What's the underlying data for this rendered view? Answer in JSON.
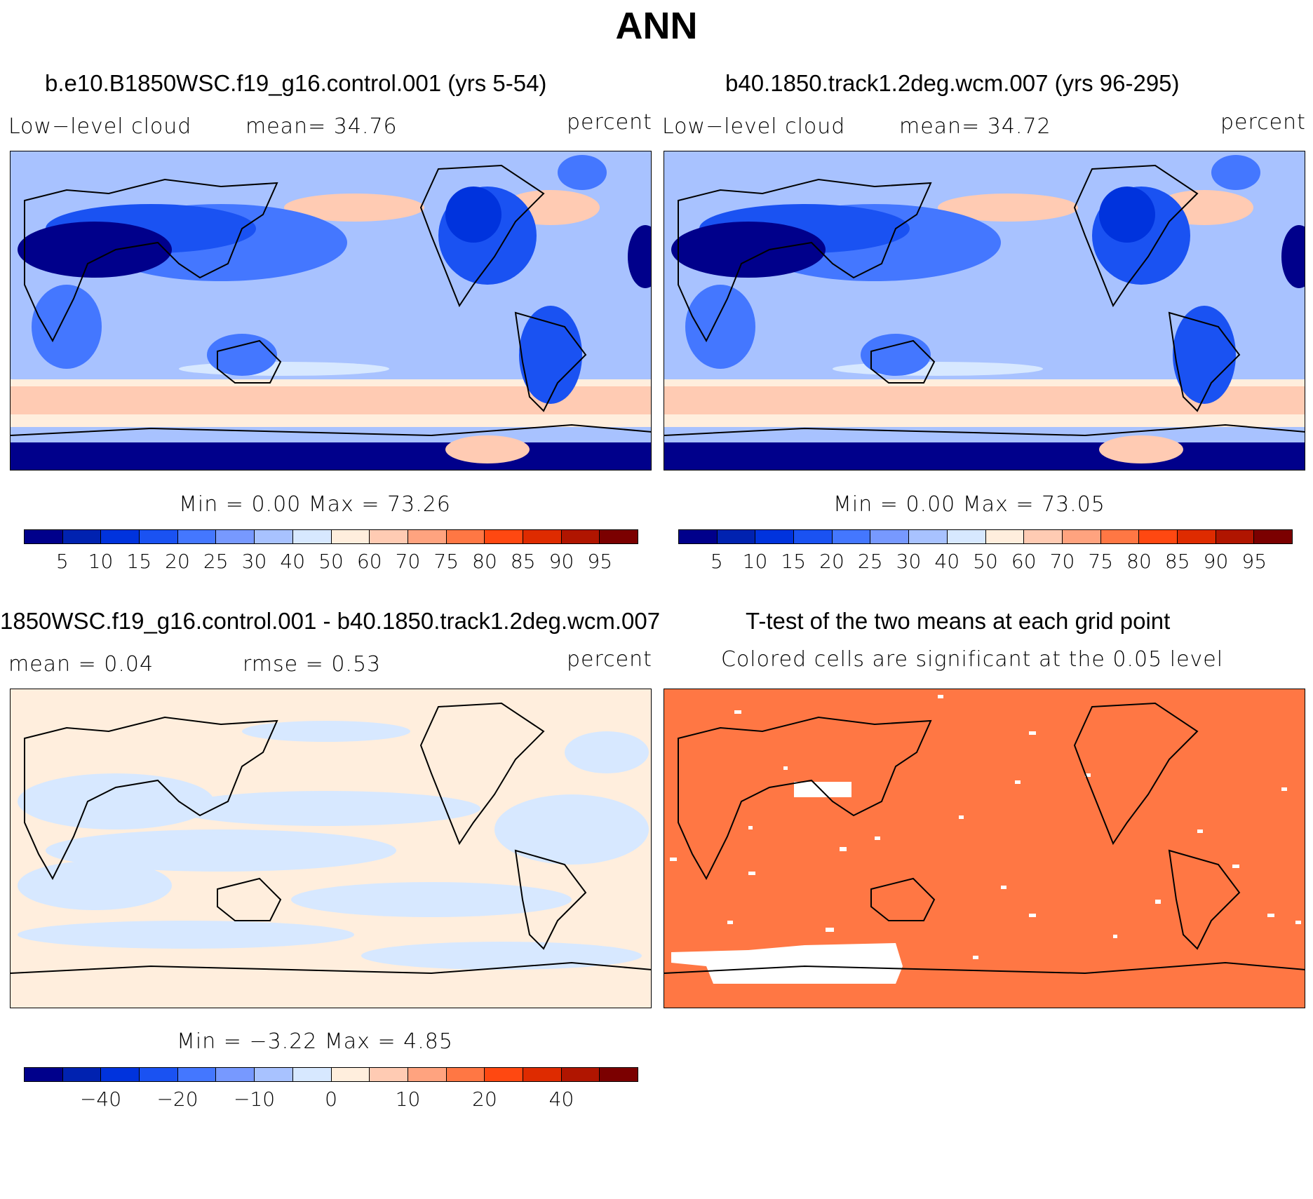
{
  "title": "ANN",
  "panels": [
    {
      "title": "b.e10.B1850WSC.f19_g16.control.001 (yrs 5-54)",
      "left_label": "Low−level cloud",
      "mid_label": "mean=   34.76",
      "units": "percent",
      "min_max": "Min =    0.00 Max =   73.26"
    },
    {
      "title": "b40.1850.track1.2deg.wcm.007 (yrs 96-295)",
      "left_label": "Low−level cloud",
      "mid_label": "mean=   34.72",
      "units": "percent",
      "min_max": "Min =    0.00 Max =   73.05"
    },
    {
      "title": "1850WSC.f19_g16.control.001 - b40.1850.track1.2deg.wcm.007",
      "left_label": "mean =    0.04",
      "mid_label": "rmse =    0.53",
      "units": "percent",
      "min_max": "Min =  −3.22 Max =    4.85"
    },
    {
      "title": "T-test of the two means at each grid point",
      "subtitle": "Colored cells are significant at the 0.05 level"
    }
  ],
  "colorbar_abs": {
    "colors": [
      "#00008b",
      "#0022b0",
      "#0033dd",
      "#1a52f2",
      "#4477ff",
      "#7799ff",
      "#a8c2ff",
      "#d7e8ff",
      "#ffeedd",
      "#ffcbb3",
      "#ffa37f",
      "#ff7744",
      "#ff4811",
      "#de2b00",
      "#b01500",
      "#7b0000"
    ],
    "ticks": [
      "5",
      "10",
      "15",
      "20",
      "25",
      "30",
      "40",
      "50",
      "60",
      "70",
      "75",
      "80",
      "85",
      "90",
      "95"
    ]
  },
  "colorbar_diff": {
    "colors": [
      "#00008b",
      "#0022b0",
      "#0033dd",
      "#1a52f2",
      "#4477ff",
      "#7799ff",
      "#a8c2ff",
      "#d7e8ff",
      "#ffeedd",
      "#ffcbb3",
      "#ffa37f",
      "#ff7744",
      "#ff4811",
      "#de2b00",
      "#b01500",
      "#7b0000"
    ],
    "ticks": [
      "",
      "−40",
      "",
      "−20",
      "",
      "−10",
      "",
      "0",
      "",
      "10",
      "",
      "20",
      "",
      "40",
      ""
    ]
  },
  "significance_color": "#ff7744"
}
